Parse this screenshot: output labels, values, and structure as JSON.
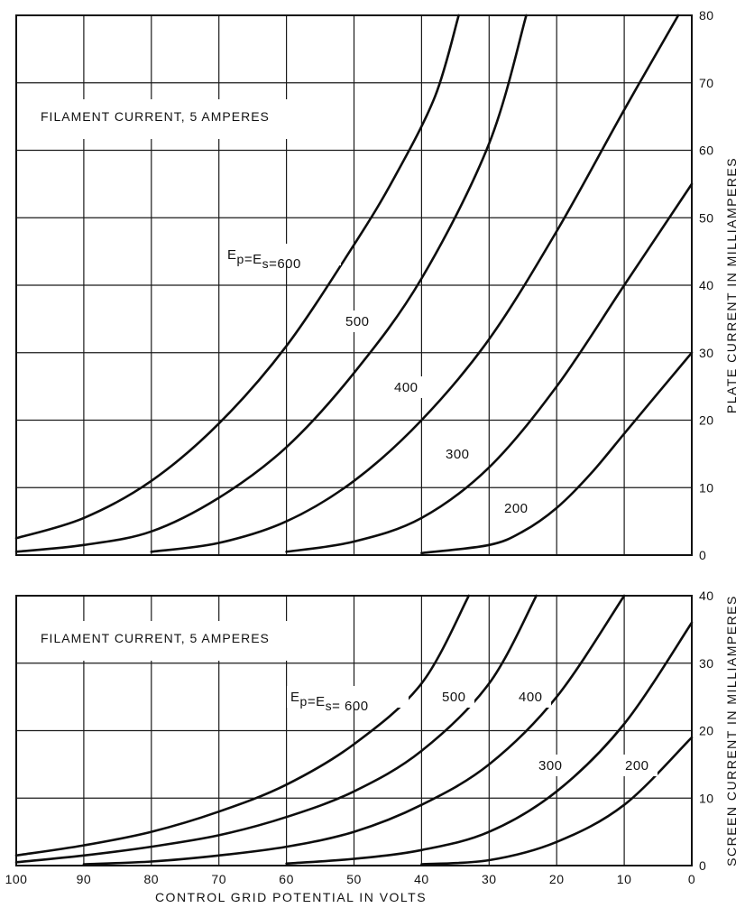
{
  "chart_data": [
    {
      "type": "line",
      "annotation": "FILAMENT CURRENT, 5 AMPERES",
      "ylabel": "PLATE CURRENT IN MILLIAMPERES",
      "xlabel": "",
      "x_reversed": true,
      "xlim": [
        100,
        0
      ],
      "ylim": [
        0,
        80
      ],
      "x_ticks": [],
      "y_ticks": [
        "0",
        "10",
        "20",
        "30",
        "40",
        "50",
        "60",
        "70",
        "80"
      ],
      "series": [
        {
          "name": "Ep=Es=600",
          "x": [
            100,
            90,
            80,
            70,
            60,
            50,
            44,
            38,
            34.5
          ],
          "y": [
            2.5,
            5.5,
            11,
            19.5,
            31,
            46,
            56,
            68,
            80
          ]
        },
        {
          "name": "500",
          "x": [
            100,
            90,
            80,
            70,
            60,
            50,
            40,
            30,
            24.5
          ],
          "y": [
            0.5,
            1.5,
            3.5,
            8.5,
            16,
            27,
            41,
            61,
            80
          ]
        },
        {
          "name": "400",
          "x": [
            80,
            70,
            60,
            50,
            40,
            30,
            20,
            10,
            2
          ],
          "y": [
            0.5,
            1.8,
            5,
            11,
            20,
            32,
            48,
            66,
            80
          ]
        },
        {
          "name": "300",
          "x": [
            60,
            50,
            40,
            30,
            20,
            10,
            0
          ],
          "y": [
            0.5,
            2,
            5.5,
            13,
            25,
            40,
            55
          ]
        },
        {
          "name": "200",
          "x": [
            40,
            30,
            25,
            20,
            15,
            10,
            5,
            0
          ],
          "y": [
            0.3,
            1.5,
            3.5,
            7,
            12,
            18,
            24,
            30
          ]
        }
      ]
    },
    {
      "type": "line",
      "annotation": "FILAMENT CURRENT, 5 AMPERES",
      "ylabel": "SCREEN CURRENT IN MILLIAMPERES",
      "xlabel": "CONTROL GRID POTENTIAL IN VOLTS",
      "x_reversed": true,
      "xlim": [
        100,
        0
      ],
      "ylim": [
        0,
        40
      ],
      "x_ticks": [
        "100",
        "90",
        "80",
        "70",
        "60",
        "50",
        "40",
        "30",
        "20",
        "10",
        "0"
      ],
      "y_ticks": [
        "0",
        "10",
        "20",
        "30",
        "40"
      ],
      "series": [
        {
          "name": "Ep=Es=600",
          "x": [
            100,
            90,
            80,
            70,
            60,
            50,
            40,
            33
          ],
          "y": [
            1.5,
            3,
            5,
            8,
            12,
            18,
            27,
            40
          ]
        },
        {
          "name": "500",
          "x": [
            100,
            90,
            80,
            70,
            60,
            50,
            40,
            30,
            23
          ],
          "y": [
            0.5,
            1.5,
            2.8,
            4.5,
            7.2,
            11,
            17,
            27,
            40
          ]
        },
        {
          "name": "400",
          "x": [
            90,
            80,
            70,
            60,
            50,
            40,
            30,
            20,
            10
          ],
          "y": [
            0.2,
            0.6,
            1.5,
            2.8,
            5,
            9,
            15,
            25,
            40
          ]
        },
        {
          "name": "300",
          "x": [
            60,
            50,
            40,
            30,
            20,
            10,
            0
          ],
          "y": [
            0.3,
            1,
            2.3,
            5,
            11,
            21,
            36
          ]
        },
        {
          "name": "200",
          "x": [
            40,
            30,
            20,
            10,
            0
          ],
          "y": [
            0.2,
            0.8,
            3.5,
            9,
            19
          ]
        }
      ]
    }
  ]
}
